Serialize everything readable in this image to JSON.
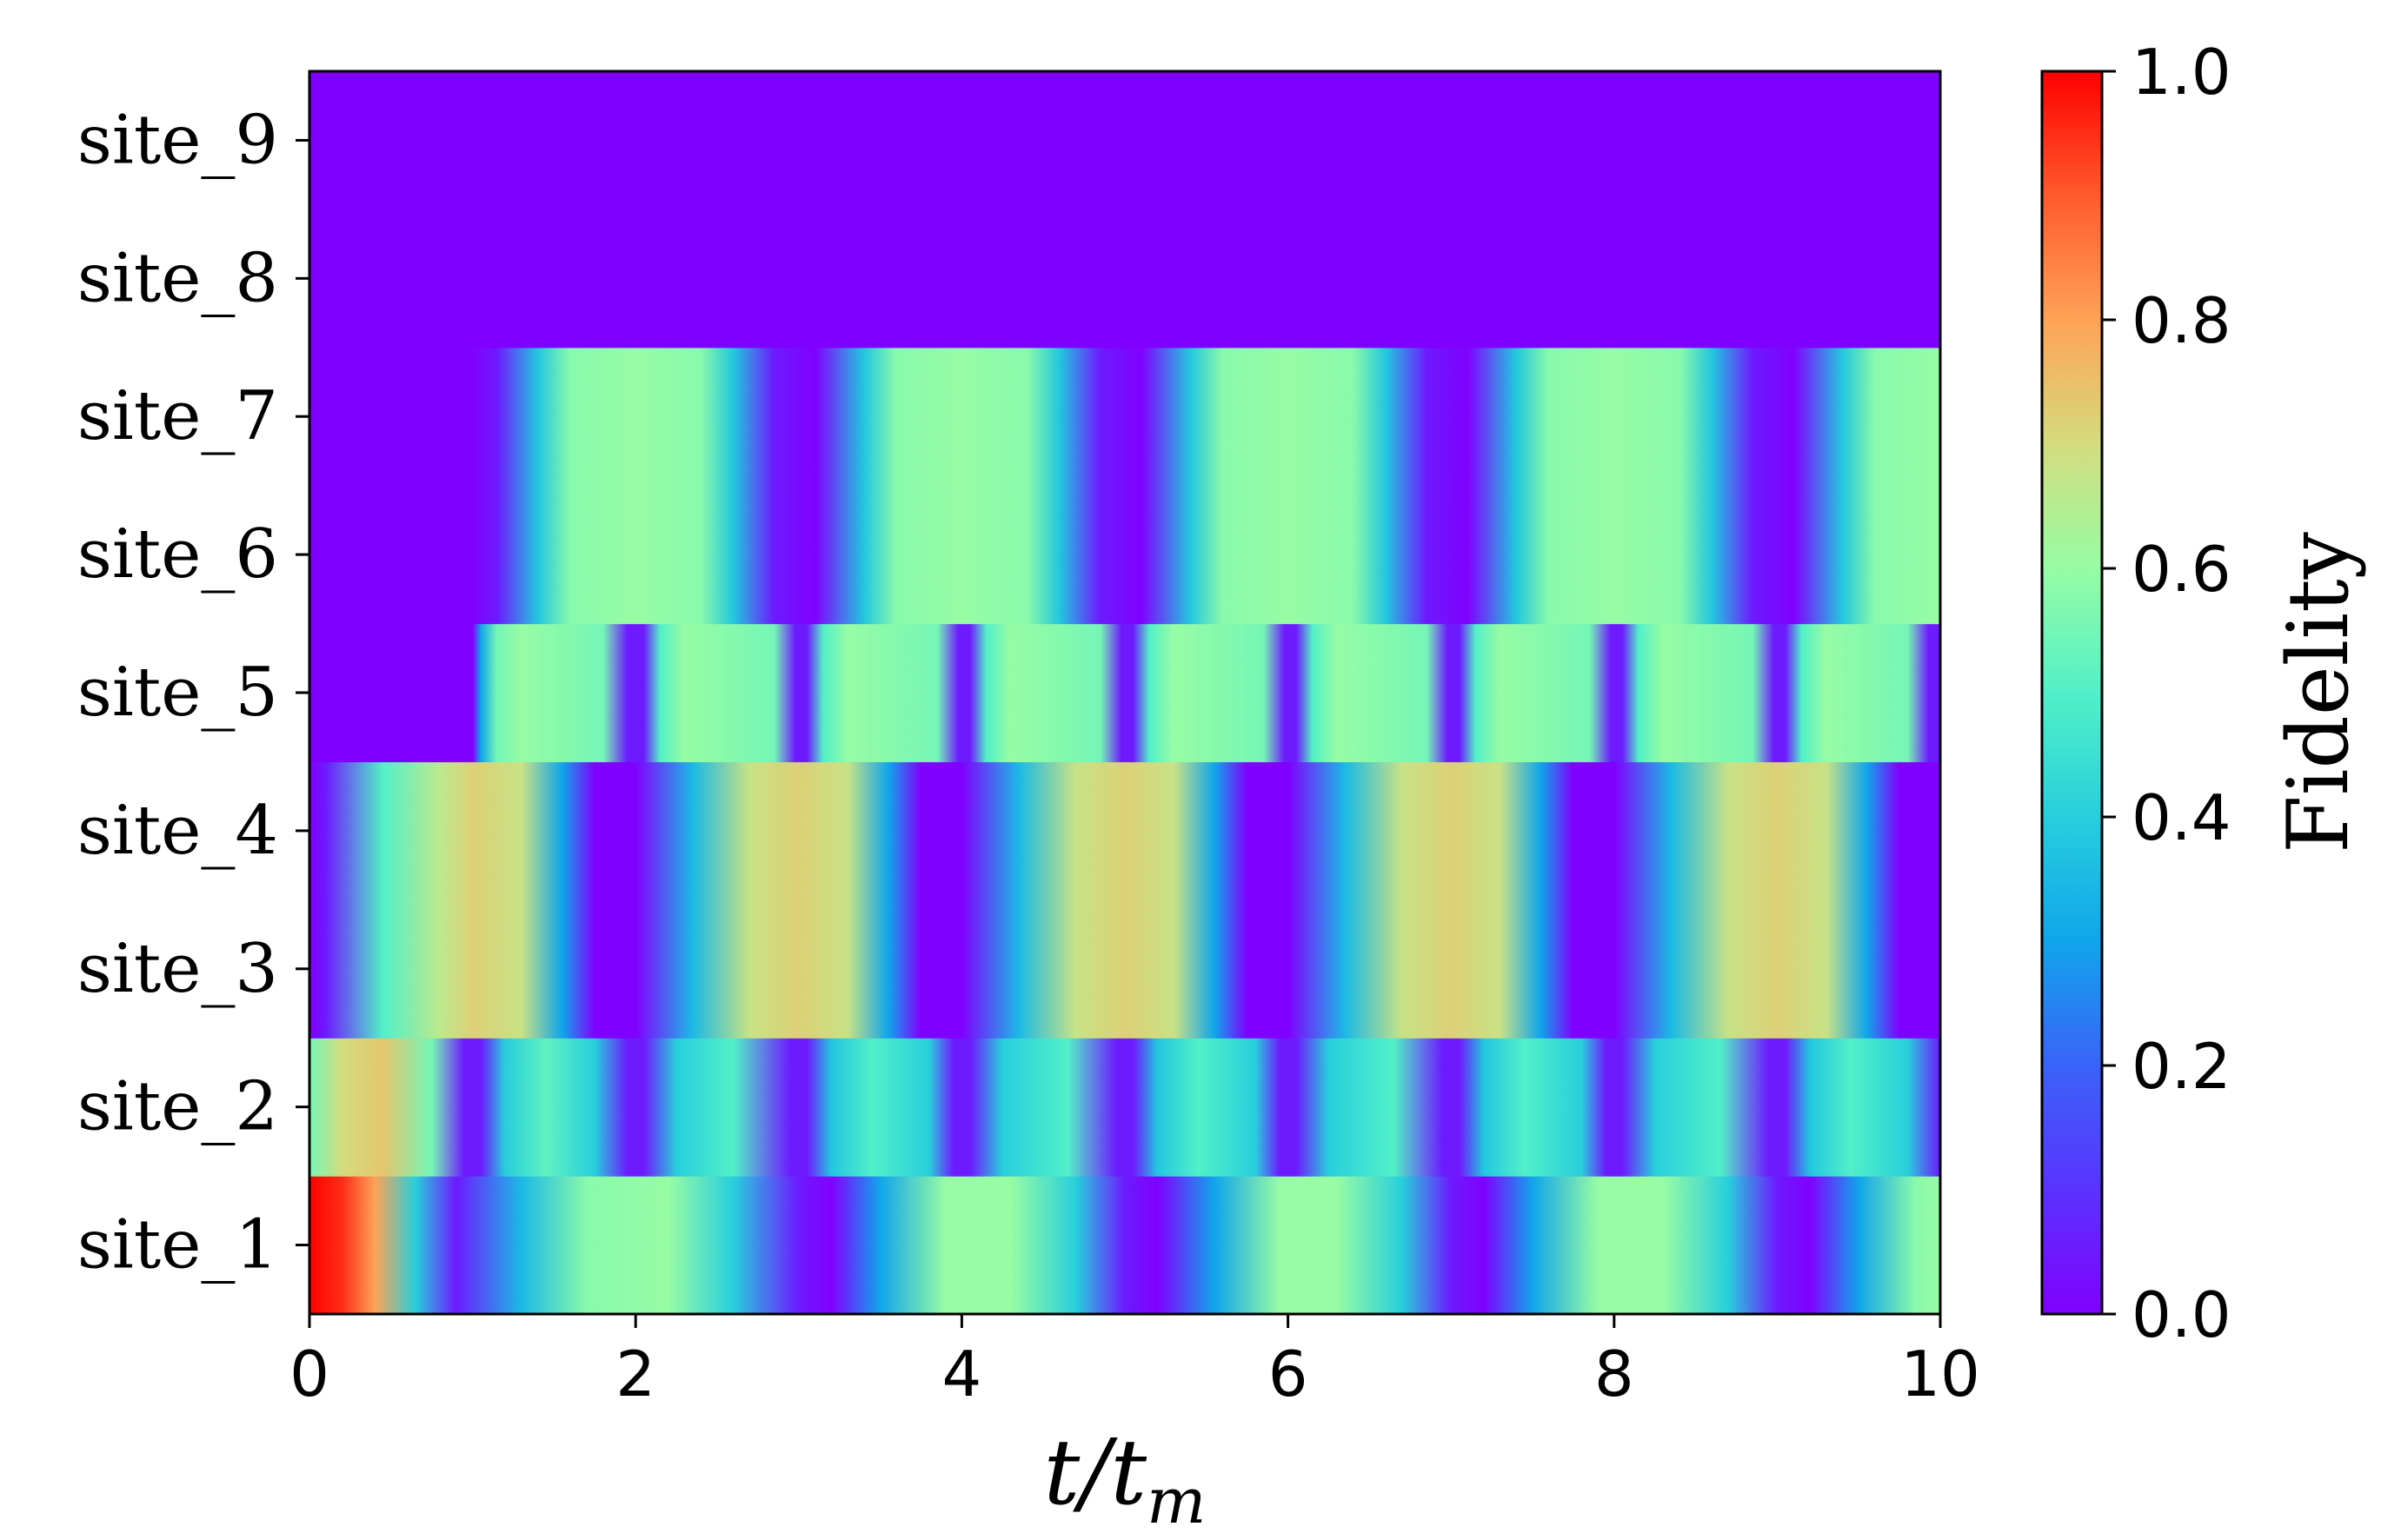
{
  "chart_data": {
    "type": "heatmap",
    "title": "",
    "xlabel": {
      "main": "t/t",
      "sub": "m"
    },
    "ylabel": "",
    "x_range": [
      0,
      10
    ],
    "x_ticks": [
      0,
      2,
      4,
      6,
      8,
      10
    ],
    "x_tick_labels": [
      "0",
      "2",
      "4",
      "6",
      "8",
      "10"
    ],
    "rows": [
      "site_1",
      "site_2",
      "site_3",
      "site_4",
      "site_5",
      "site_6",
      "site_7",
      "site_8",
      "site_9"
    ],
    "colormap": "rainbow",
    "colorbar": {
      "label": "Fidelity",
      "range": [
        0.0,
        1.0
      ],
      "ticks": [
        0.0,
        0.2,
        0.4,
        0.6,
        0.8,
        1.0
      ],
      "tick_labels": [
        "0.0",
        "0.2",
        "0.4",
        "0.6",
        "0.8",
        "1.0"
      ],
      "stops": [
        [
          0.0,
          "#8000ff"
        ],
        [
          0.1,
          "#5a33fe"
        ],
        [
          0.2,
          "#3a63f8"
        ],
        [
          0.3,
          "#10a5eb"
        ],
        [
          0.4,
          "#27cfdc"
        ],
        [
          0.5,
          "#52f0c8"
        ],
        [
          0.6,
          "#97fca4"
        ],
        [
          0.7,
          "#d4dc7e"
        ],
        [
          0.8,
          "#ffa256"
        ],
        [
          0.9,
          "#ff5a2d"
        ],
        [
          1.0,
          "#ff0000"
        ]
      ]
    },
    "series": [
      {
        "row": "site_1",
        "t": [
          0,
          0.2,
          0.4,
          0.65,
          0.9,
          1.3,
          1.7,
          2.2,
          2.6,
          3.0,
          3.2,
          3.5,
          3.9,
          4.3,
          4.7,
          5.0,
          5.2,
          5.55,
          5.95,
          6.3,
          6.7,
          7.0,
          7.2,
          7.5,
          7.9,
          8.3,
          8.7,
          9.0,
          9.2,
          9.5,
          9.85,
          10
        ],
        "v": [
          1.0,
          0.95,
          0.8,
          0.4,
          0.05,
          0.35,
          0.58,
          0.6,
          0.4,
          0.05,
          0.0,
          0.3,
          0.6,
          0.6,
          0.4,
          0.05,
          0.0,
          0.3,
          0.6,
          0.6,
          0.4,
          0.05,
          0.0,
          0.3,
          0.6,
          0.6,
          0.4,
          0.05,
          0.0,
          0.3,
          0.58,
          0.6
        ]
      },
      {
        "row": "site_2",
        "t": [
          0,
          0.2,
          0.45,
          0.75,
          0.95,
          1.05,
          1.2,
          1.45,
          1.75,
          1.95,
          2.05,
          2.25,
          2.6,
          2.95,
          3.05,
          3.2,
          3.45,
          3.8,
          3.95,
          4.05,
          4.25,
          4.65,
          4.95,
          5.05,
          5.2,
          5.45,
          5.8,
          5.95,
          6.05,
          6.25,
          6.65,
          6.95,
          7.05,
          7.2,
          7.45,
          7.8,
          7.95,
          8.05,
          8.25,
          8.65,
          8.95,
          9.05,
          9.2,
          9.45,
          9.8,
          10
        ],
        "v": [
          0.55,
          0.7,
          0.74,
          0.55,
          0.05,
          0.05,
          0.4,
          0.52,
          0.4,
          0.05,
          0.05,
          0.4,
          0.5,
          0.05,
          0.05,
          0.38,
          0.5,
          0.4,
          0.05,
          0.05,
          0.4,
          0.5,
          0.05,
          0.05,
          0.38,
          0.5,
          0.4,
          0.05,
          0.05,
          0.4,
          0.5,
          0.05,
          0.05,
          0.38,
          0.5,
          0.4,
          0.05,
          0.05,
          0.4,
          0.5,
          0.05,
          0.05,
          0.38,
          0.5,
          0.4,
          0.05
        ]
      },
      {
        "row": "site_3",
        "t": [
          0,
          0.1,
          0.45,
          0.8,
          1.0,
          1.3,
          1.55,
          1.75,
          2.0,
          2.35,
          2.7,
          3.0,
          3.3,
          3.55,
          3.75,
          4.0,
          4.35,
          4.7,
          5.0,
          5.3,
          5.55,
          5.75,
          6.0,
          6.35,
          6.7,
          7.0,
          7.3,
          7.55,
          7.75,
          8.0,
          8.35,
          8.7,
          9.0,
          9.3,
          9.55,
          9.75,
          10
        ],
        "v": [
          0.0,
          0.05,
          0.5,
          0.66,
          0.72,
          0.68,
          0.3,
          0.0,
          0.0,
          0.35,
          0.68,
          0.72,
          0.68,
          0.3,
          0.0,
          0.0,
          0.35,
          0.68,
          0.72,
          0.68,
          0.3,
          0.0,
          0.0,
          0.35,
          0.68,
          0.72,
          0.68,
          0.3,
          0.0,
          0.0,
          0.35,
          0.68,
          0.72,
          0.68,
          0.3,
          0.0,
          0.0
        ]
      },
      {
        "row": "site_4",
        "t": [
          0,
          0.1,
          0.45,
          0.8,
          1.0,
          1.3,
          1.55,
          1.75,
          2.0,
          2.35,
          2.7,
          3.0,
          3.3,
          3.55,
          3.75,
          4.0,
          4.35,
          4.7,
          5.0,
          5.3,
          5.55,
          5.75,
          6.0,
          6.35,
          6.7,
          7.0,
          7.3,
          7.55,
          7.75,
          8.0,
          8.35,
          8.7,
          9.0,
          9.3,
          9.55,
          9.75,
          10
        ],
        "v": [
          0.0,
          0.05,
          0.5,
          0.66,
          0.72,
          0.68,
          0.3,
          0.0,
          0.0,
          0.35,
          0.68,
          0.72,
          0.68,
          0.3,
          0.0,
          0.0,
          0.35,
          0.68,
          0.72,
          0.68,
          0.3,
          0.0,
          0.0,
          0.35,
          0.68,
          0.72,
          0.68,
          0.3,
          0.0,
          0.0,
          0.35,
          0.68,
          0.72,
          0.68,
          0.3,
          0.0,
          0.0
        ]
      },
      {
        "row": "site_5",
        "t": [
          0,
          1.0,
          1.05,
          1.15,
          1.3,
          1.8,
          1.95,
          2.05,
          2.15,
          2.3,
          2.85,
          2.98,
          3.05,
          3.15,
          3.3,
          3.85,
          3.98,
          4.05,
          4.15,
          4.3,
          4.85,
          4.98,
          5.05,
          5.15,
          5.3,
          5.85,
          5.98,
          6.05,
          6.15,
          6.3,
          6.85,
          6.98,
          7.05,
          7.15,
          7.3,
          7.85,
          7.98,
          8.05,
          8.15,
          8.3,
          8.85,
          8.98,
          9.05,
          9.15,
          9.3,
          9.8,
          9.93,
          10
        ],
        "v": [
          0.0,
          0.0,
          0.3,
          0.55,
          0.6,
          0.55,
          0.05,
          0.05,
          0.5,
          0.6,
          0.55,
          0.05,
          0.05,
          0.5,
          0.6,
          0.55,
          0.05,
          0.05,
          0.5,
          0.6,
          0.55,
          0.05,
          0.05,
          0.5,
          0.6,
          0.55,
          0.05,
          0.05,
          0.5,
          0.6,
          0.55,
          0.05,
          0.05,
          0.5,
          0.6,
          0.55,
          0.05,
          0.05,
          0.5,
          0.6,
          0.55,
          0.05,
          0.05,
          0.5,
          0.6,
          0.55,
          0.05,
          0.05
        ]
      },
      {
        "row": "site_6",
        "t": [
          0,
          1.0,
          1.15,
          1.4,
          1.6,
          2.0,
          2.4,
          2.6,
          2.85,
          3.1,
          3.4,
          3.6,
          4.0,
          4.4,
          4.6,
          4.85,
          5.1,
          5.4,
          5.6,
          6.0,
          6.4,
          6.6,
          6.85,
          7.1,
          7.4,
          7.6,
          8.0,
          8.4,
          8.6,
          8.85,
          9.1,
          9.4,
          9.6,
          10
        ],
        "v": [
          0.0,
          0.0,
          0.05,
          0.38,
          0.58,
          0.6,
          0.58,
          0.38,
          0.05,
          0.0,
          0.38,
          0.58,
          0.6,
          0.58,
          0.38,
          0.05,
          0.0,
          0.38,
          0.58,
          0.6,
          0.58,
          0.38,
          0.05,
          0.0,
          0.38,
          0.58,
          0.6,
          0.58,
          0.38,
          0.05,
          0.0,
          0.38,
          0.58,
          0.6
        ]
      },
      {
        "row": "site_7",
        "t": [
          0,
          1.0,
          1.15,
          1.4,
          1.6,
          2.0,
          2.4,
          2.6,
          2.85,
          3.1,
          3.4,
          3.6,
          4.0,
          4.4,
          4.6,
          4.85,
          5.1,
          5.4,
          5.6,
          6.0,
          6.4,
          6.6,
          6.85,
          7.1,
          7.4,
          7.6,
          8.0,
          8.4,
          8.6,
          8.85,
          9.1,
          9.4,
          9.6,
          10
        ],
        "v": [
          0.0,
          0.0,
          0.05,
          0.38,
          0.58,
          0.6,
          0.58,
          0.38,
          0.05,
          0.0,
          0.38,
          0.58,
          0.6,
          0.58,
          0.38,
          0.05,
          0.0,
          0.38,
          0.58,
          0.6,
          0.58,
          0.38,
          0.05,
          0.0,
          0.38,
          0.58,
          0.6,
          0.58,
          0.38,
          0.05,
          0.0,
          0.38,
          0.58,
          0.6
        ]
      },
      {
        "row": "site_8",
        "t": [
          0,
          10
        ],
        "v": [
          0.0,
          0.0
        ]
      },
      {
        "row": "site_9",
        "t": [
          0,
          10
        ],
        "v": [
          0.0,
          0.0
        ]
      }
    ]
  }
}
